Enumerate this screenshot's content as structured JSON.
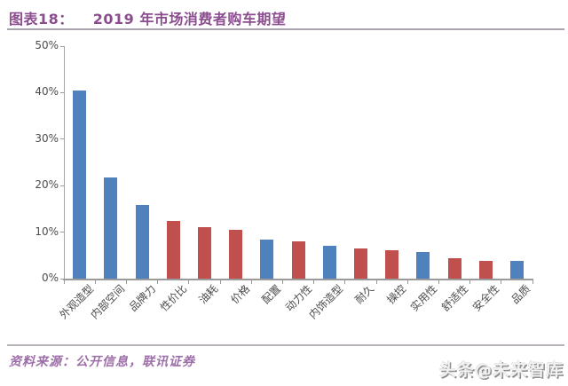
{
  "header": {
    "figure_label": "图表18：",
    "title": "2019 年市场消费者购车期望"
  },
  "footer": {
    "source": "资料来源：公开信息，联讯证券",
    "watermark": "头条@未来智库"
  },
  "colors": {
    "title": "#8b4d8e",
    "source": "#9d6fa8",
    "bar_blue": "#4f81bd",
    "bar_red": "#c0504d",
    "axis": "#a6a6a6",
    "tick_label": "#4d4d4d"
  },
  "chart_data": {
    "type": "bar",
    "title": "2019 年市场消费者购车期望",
    "xlabel": "",
    "ylabel": "",
    "grid": false,
    "legend": "none",
    "ylim": [
      0,
      50
    ],
    "ytick_step": 10,
    "yticks": [
      "0%",
      "10%",
      "20%",
      "30%",
      "40%",
      "50%"
    ],
    "categories": [
      "外观造型",
      "内部空间",
      "品牌力",
      "性价比",
      "油耗",
      "价格",
      "配置",
      "动力性",
      "内饰造型",
      "耐久",
      "操控",
      "实用性",
      "舒适性",
      "安全性",
      "品质"
    ],
    "values": [
      40.5,
      21.8,
      15.9,
      12.4,
      11.1,
      10.5,
      8.4,
      8.1,
      7.0,
      6.5,
      6.2,
      5.7,
      4.4,
      3.9,
      3.9
    ],
    "color_keys": [
      "bar_blue",
      "bar_blue",
      "bar_blue",
      "bar_red",
      "bar_red",
      "bar_red",
      "bar_blue",
      "bar_red",
      "bar_blue",
      "bar_red",
      "bar_red",
      "bar_blue",
      "bar_red",
      "bar_red",
      "bar_blue"
    ]
  }
}
